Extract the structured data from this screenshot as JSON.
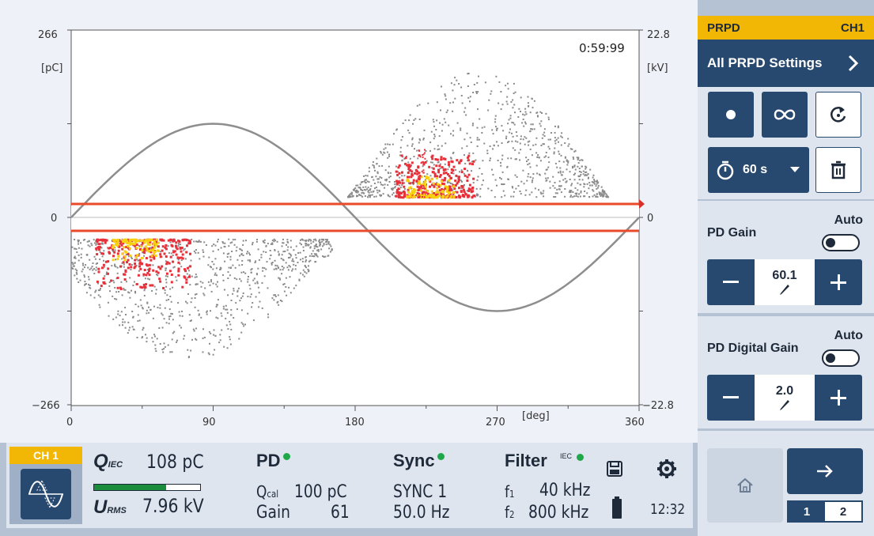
{
  "chart": {
    "timer": "0:59:99",
    "left_unit": "[pC]",
    "right_unit": "[kV]",
    "x_unit": "[deg]",
    "left_ticks": [
      "266",
      "0",
      "−266"
    ],
    "right_ticks": [
      "22.8",
      "0",
      "−22.8"
    ],
    "x_ticks": [
      "0",
      "90",
      "180",
      "270",
      "360"
    ]
  },
  "chart_data": {
    "type": "scatter",
    "title": "",
    "xlabel": "[deg]",
    "ylabel": "[pC]",
    "y2label": "[kV]",
    "xlim": [
      0,
      360
    ],
    "ylim": [
      -266,
      266
    ],
    "y2lim": [
      -22.8,
      22.8
    ],
    "threshold_pC": [
      30,
      -30
    ],
    "sine_amplitude_kV": 11.4,
    "clusters": [
      {
        "name": "positive",
        "phase_deg": [
          175,
          340
        ],
        "peak_phase_deg": 220,
        "max_pC": 210
      },
      {
        "name": "negative",
        "phase_deg": [
          0,
          165
        ],
        "peak_phase_deg": 40,
        "max_pC": -200
      }
    ],
    "colors": {
      "low": "#8a8a8a",
      "mid": "#e8303a",
      "high": "#f7d012",
      "threshold": "#e84a2a",
      "sine": "#8e8e8e"
    }
  },
  "panel": {
    "header_left": "PRPD",
    "header_right": "CH1",
    "all_settings_label": "All PRPD Settings",
    "timer_label": "60 s",
    "pd_gain": {
      "label": "PD Gain",
      "auto": "Auto",
      "value": "60.1"
    },
    "pd_digital_gain": {
      "label": "PD Digital Gain",
      "auto": "Auto",
      "value": "2.0"
    },
    "pages": [
      "1",
      "2"
    ]
  },
  "status": {
    "channel": "CH 1",
    "q_label": "Q",
    "q_sub": "IEC",
    "q_value": "108 pC",
    "q_fill": 0.68,
    "u_label": "U",
    "u_sub": "RMS",
    "u_value": "7.96 kV",
    "pd_title": "PD",
    "qcal_label": "Q",
    "qcal_sub": "cal",
    "qcal_value": "100 pC",
    "gain_label": "Gain",
    "gain_value": "61",
    "sync_title": "Sync",
    "sync_source": "SYNC 1",
    "sync_freq": "50.0 Hz",
    "filter_title": "Filter",
    "filter_tag": "IEC",
    "f1_label": "f",
    "f1_sub": "1",
    "f1_value": "40 kHz",
    "f2_label": "f",
    "f2_sub": "2",
    "f2_value": "800 kHz",
    "time": "12:32"
  }
}
